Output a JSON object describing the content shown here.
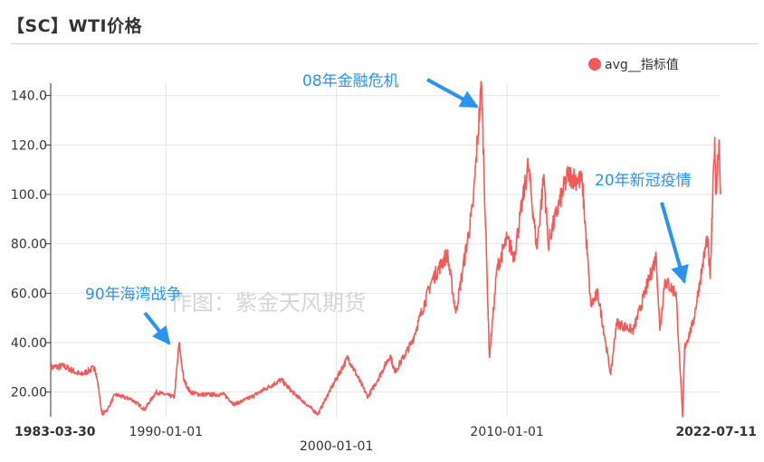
{
  "header": {
    "title": "【SC】WTI价格"
  },
  "watermark": "作图：紫金天风期货",
  "chart_data": {
    "type": "line",
    "title": "【SC】WTI价格",
    "xlabel": "",
    "ylabel": "",
    "ylim": [
      10,
      145
    ],
    "grid": true,
    "legend_position": "top-right",
    "series_color": "#f25a5a",
    "y_ticks": [
      "20.00",
      "40.00",
      "60.00",
      "80.00",
      "100.0",
      "120.0",
      "140.0"
    ],
    "x_ticks": [
      {
        "label": "1983-03-30",
        "bold": true
      },
      {
        "label": "1990-01-01",
        "bold": false
      },
      {
        "label": "2000-01-01",
        "bold": false
      },
      {
        "label": "2010-01-01",
        "bold": false
      },
      {
        "label": "2022-07-11",
        "bold": true
      }
    ],
    "series": [
      {
        "name": "avg__指标值",
        "points": [
          [
            "1983-03-30",
            30
          ],
          [
            "1984-01-01",
            30.5
          ],
          [
            "1985-01-01",
            27
          ],
          [
            "1985-11-01",
            30
          ],
          [
            "1986-01-15",
            22
          ],
          [
            "1986-04-01",
            11
          ],
          [
            "1986-08-01",
            13
          ],
          [
            "1987-01-01",
            19
          ],
          [
            "1988-01-01",
            17
          ],
          [
            "1988-10-01",
            13
          ],
          [
            "1989-06-01",
            20
          ],
          [
            "1990-07-01",
            18
          ],
          [
            "1990-10-10",
            40
          ],
          [
            "1991-01-15",
            25
          ],
          [
            "1991-06-01",
            20
          ],
          [
            "1992-01-01",
            19
          ],
          [
            "1993-06-01",
            19
          ],
          [
            "1994-01-01",
            15
          ],
          [
            "1995-01-01",
            18
          ],
          [
            "1996-10-01",
            25
          ],
          [
            "1997-06-01",
            20
          ],
          [
            "1998-12-01",
            11
          ],
          [
            "1999-06-01",
            18
          ],
          [
            "2000-09-01",
            34
          ],
          [
            "2001-11-01",
            18
          ],
          [
            "2002-06-01",
            25
          ],
          [
            "2003-03-01",
            35
          ],
          [
            "2003-06-01",
            28
          ],
          [
            "2004-06-01",
            40
          ],
          [
            "2005-08-01",
            65
          ],
          [
            "2006-07-01",
            76
          ],
          [
            "2007-01-01",
            52
          ],
          [
            "2007-06-01",
            70
          ],
          [
            "2008-01-01",
            95
          ],
          [
            "2008-07-04",
            145
          ],
          [
            "2008-12-20",
            34
          ],
          [
            "2009-06-01",
            70
          ],
          [
            "2010-01-01",
            82
          ],
          [
            "2010-06-01",
            75
          ],
          [
            "2011-04-01",
            112
          ],
          [
            "2011-10-01",
            78
          ],
          [
            "2012-03-01",
            108
          ],
          [
            "2012-06-01",
            80
          ],
          [
            "2013-01-01",
            95
          ],
          [
            "2013-08-01",
            108
          ],
          [
            "2014-06-01",
            105
          ],
          [
            "2014-12-01",
            55
          ],
          [
            "2015-05-01",
            60
          ],
          [
            "2016-02-01",
            27
          ],
          [
            "2016-06-01",
            48
          ],
          [
            "2017-06-01",
            45
          ],
          [
            "2018-10-01",
            75
          ],
          [
            "2018-12-20",
            45
          ],
          [
            "2019-04-01",
            65
          ],
          [
            "2019-12-01",
            60
          ],
          [
            "2020-04-20",
            10
          ],
          [
            "2020-06-01",
            38
          ],
          [
            "2020-12-01",
            48
          ],
          [
            "2021-10-01",
            83
          ],
          [
            "2021-12-01",
            66
          ],
          [
            "2022-03-08",
            123
          ],
          [
            "2022-04-01",
            100
          ],
          [
            "2022-06-08",
            122
          ],
          [
            "2022-07-11",
            100
          ]
        ]
      }
    ],
    "annotations": [
      {
        "text": "90年海湾战争",
        "date": "1990-10-10",
        "value": 40
      },
      {
        "text": "08年金融危机",
        "date": "2008-07-04",
        "value": 145
      },
      {
        "text": "20年新冠疫情",
        "date": "2020-04-20",
        "value": 62
      }
    ]
  }
}
